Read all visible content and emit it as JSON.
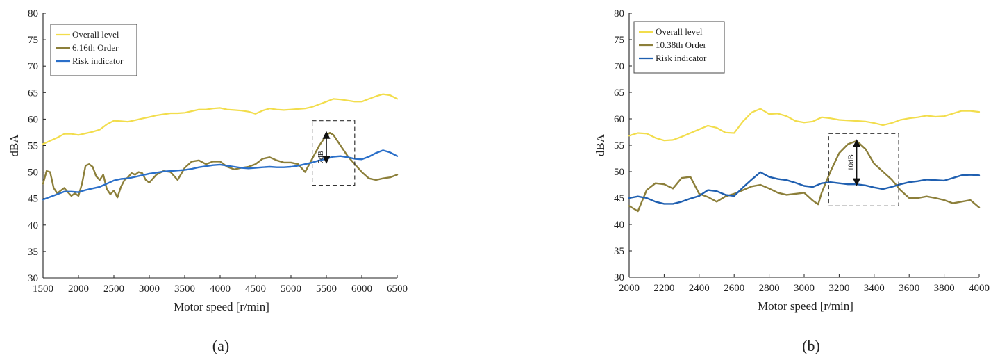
{
  "chart_data": [
    {
      "type": "line",
      "caption": "(a)",
      "xlabel": "Motor speed [r/min]",
      "ylabel": "dBA",
      "xlim": [
        1500,
        6500
      ],
      "ylim": [
        30,
        80
      ],
      "xticks": [
        1500,
        2000,
        2500,
        3000,
        3500,
        4000,
        4500,
        5000,
        5500,
        6000,
        6500
      ],
      "yticks": [
        30,
        35,
        40,
        45,
        50,
        55,
        60,
        65,
        70,
        75,
        80
      ],
      "grid": false,
      "legend_position": "top-left",
      "series": [
        {
          "name": "Overall level",
          "color": "#f2dd4c",
          "x": [
            1500,
            1600,
            1700,
            1800,
            1900,
            2000,
            2100,
            2200,
            2300,
            2400,
            2500,
            2600,
            2700,
            2800,
            2900,
            3000,
            3100,
            3200,
            3300,
            3400,
            3500,
            3600,
            3700,
            3800,
            3900,
            4000,
            4100,
            4200,
            4300,
            4400,
            4500,
            4600,
            4700,
            4800,
            4900,
            5000,
            5100,
            5200,
            5300,
            5400,
            5500,
            5600,
            5700,
            5800,
            5900,
            6000,
            6100,
            6200,
            6300,
            6400,
            6500
          ],
          "y": [
            55.3,
            55.9,
            56.5,
            57.2,
            57.2,
            57.0,
            57.3,
            57.6,
            58.0,
            59.0,
            59.7,
            59.6,
            59.5,
            59.8,
            60.1,
            60.4,
            60.7,
            60.9,
            61.1,
            61.1,
            61.2,
            61.5,
            61.8,
            61.8,
            62.0,
            62.1,
            61.8,
            61.7,
            61.6,
            61.4,
            61.0,
            61.6,
            62.0,
            61.8,
            61.7,
            61.8,
            61.9,
            62.0,
            62.3,
            62.8,
            63.3,
            63.8,
            63.7,
            63.5,
            63.3,
            63.3,
            63.8,
            64.3,
            64.7,
            64.5,
            63.8
          ]
        },
        {
          "name": "6.16th Order",
          "color": "#8c7f3a",
          "x": [
            1500,
            1550,
            1600,
            1650,
            1700,
            1750,
            1800,
            1850,
            1900,
            1950,
            2000,
            2050,
            2100,
            2150,
            2200,
            2250,
            2300,
            2350,
            2400,
            2450,
            2500,
            2550,
            2600,
            2650,
            2700,
            2750,
            2800,
            2850,
            2900,
            2950,
            3000,
            3100,
            3200,
            3300,
            3400,
            3500,
            3600,
            3700,
            3800,
            3900,
            4000,
            4100,
            4200,
            4300,
            4400,
            4500,
            4600,
            4700,
            4800,
            4900,
            5000,
            5100,
            5200,
            5300,
            5400,
            5500,
            5550,
            5600,
            5700,
            5800,
            5900,
            6000,
            6100,
            6200,
            6300,
            6400,
            6500
          ],
          "y": [
            47.8,
            50.2,
            50.0,
            47.0,
            46.0,
            46.5,
            47.0,
            46.2,
            45.5,
            46.0,
            45.5,
            47.8,
            51.2,
            51.5,
            51.0,
            49.2,
            48.5,
            49.5,
            46.8,
            45.8,
            46.5,
            45.2,
            47.2,
            48.5,
            49.0,
            49.8,
            49.5,
            50.0,
            49.8,
            48.5,
            48.0,
            49.5,
            50.2,
            50.0,
            48.5,
            50.8,
            52.0,
            52.2,
            51.5,
            52.0,
            52.0,
            51.0,
            50.5,
            50.8,
            51.0,
            51.5,
            52.5,
            52.8,
            52.2,
            51.8,
            51.8,
            51.5,
            50.0,
            52.5,
            55.0,
            57.0,
            57.4,
            57.0,
            55.0,
            53.0,
            51.5,
            50.0,
            48.8,
            48.5,
            48.8,
            49.0,
            49.5
          ]
        },
        {
          "name": "Risk indicator",
          "color": "#2a6fc9",
          "x": [
            1500,
            1600,
            1700,
            1800,
            1900,
            2000,
            2100,
            2200,
            2300,
            2400,
            2500,
            2600,
            2700,
            2800,
            2900,
            3000,
            3100,
            3200,
            3300,
            3400,
            3500,
            3600,
            3700,
            3800,
            3900,
            4000,
            4100,
            4200,
            4300,
            4400,
            4500,
            4600,
            4700,
            4800,
            4900,
            5000,
            5100,
            5200,
            5300,
            5400,
            5500,
            5600,
            5700,
            5800,
            5900,
            6000,
            6100,
            6200,
            6300,
            6400,
            6500
          ],
          "y": [
            44.8,
            45.3,
            45.8,
            46.3,
            46.3,
            46.2,
            46.6,
            46.9,
            47.2,
            47.8,
            48.4,
            48.7,
            48.8,
            49.1,
            49.4,
            49.7,
            49.9,
            50.1,
            50.2,
            50.3,
            50.4,
            50.6,
            50.9,
            51.1,
            51.3,
            51.4,
            51.2,
            51.0,
            50.8,
            50.7,
            50.8,
            50.9,
            51.0,
            50.9,
            50.9,
            51.0,
            51.2,
            51.5,
            51.8,
            52.2,
            52.5,
            52.9,
            53.0,
            52.8,
            52.5,
            52.4,
            52.9,
            53.6,
            54.1,
            53.7,
            53.0
          ]
        }
      ],
      "annotation": {
        "label": "7dB",
        "x_range": [
          5300,
          5900
        ],
        "y_range": [
          47.5,
          59.7
        ],
        "arrow_x": 5500,
        "arrow_y": [
          51.9,
          57.4
        ]
      }
    },
    {
      "type": "line",
      "caption": "(b)",
      "xlabel": "Motor speed [r/min]",
      "ylabel": "dBA",
      "xlim": [
        2000,
        4000
      ],
      "ylim": [
        30,
        80
      ],
      "xticks": [
        2000,
        2200,
        2400,
        2600,
        2800,
        3000,
        3200,
        3400,
        3600,
        3800,
        4000
      ],
      "yticks": [
        30,
        35,
        40,
        45,
        50,
        55,
        60,
        65,
        70,
        75,
        80
      ],
      "grid": false,
      "legend_position": "top-left",
      "series": [
        {
          "name": "Overall level",
          "color": "#f2dd4c",
          "x": [
            2000,
            2050,
            2100,
            2150,
            2200,
            2250,
            2300,
            2350,
            2400,
            2450,
            2500,
            2550,
            2600,
            2650,
            2700,
            2750,
            2800,
            2850,
            2900,
            2950,
            3000,
            3050,
            3100,
            3150,
            3200,
            3250,
            3300,
            3350,
            3400,
            3450,
            3500,
            3550,
            3600,
            3650,
            3700,
            3750,
            3800,
            3850,
            3900,
            3950,
            4000
          ],
          "y": [
            56.8,
            57.3,
            57.2,
            56.4,
            55.9,
            56.0,
            56.6,
            57.3,
            58.0,
            58.7,
            58.3,
            57.4,
            57.3,
            59.5,
            61.2,
            61.9,
            60.9,
            61.0,
            60.5,
            59.6,
            59.3,
            59.5,
            60.3,
            60.1,
            59.8,
            59.7,
            59.6,
            59.5,
            59.2,
            58.8,
            59.2,
            59.8,
            60.1,
            60.3,
            60.6,
            60.4,
            60.5,
            61.0,
            61.5,
            61.5,
            61.3
          ]
        },
        {
          "name": "10.38th Order",
          "color": "#8c7f3a",
          "x": [
            2000,
            2050,
            2100,
            2150,
            2200,
            2250,
            2300,
            2350,
            2400,
            2450,
            2500,
            2550,
            2600,
            2650,
            2700,
            2750,
            2800,
            2850,
            2900,
            2950,
            3000,
            3050,
            3080,
            3100,
            3150,
            3200,
            3250,
            3300,
            3350,
            3400,
            3450,
            3500,
            3550,
            3600,
            3650,
            3700,
            3750,
            3800,
            3850,
            3900,
            3950,
            4000
          ],
          "y": [
            43.5,
            42.5,
            46.5,
            47.8,
            47.6,
            46.8,
            48.8,
            49.0,
            45.8,
            45.2,
            44.3,
            45.3,
            45.8,
            46.5,
            47.2,
            47.5,
            46.8,
            46.0,
            45.6,
            45.8,
            46.0,
            44.5,
            43.8,
            46.0,
            50.0,
            53.5,
            55.2,
            55.8,
            54.3,
            51.5,
            50.0,
            48.5,
            46.5,
            45.0,
            45.0,
            45.3,
            45.0,
            44.6,
            44.0,
            44.3,
            44.6,
            43.2
          ]
        },
        {
          "name": "Risk indicator",
          "color": "#1f5fb0",
          "x": [
            2000,
            2050,
            2100,
            2150,
            2200,
            2250,
            2300,
            2350,
            2400,
            2450,
            2500,
            2550,
            2600,
            2650,
            2700,
            2750,
            2800,
            2850,
            2900,
            2950,
            3000,
            3050,
            3100,
            3150,
            3200,
            3250,
            3300,
            3350,
            3400,
            3450,
            3500,
            3550,
            3600,
            3650,
            3700,
            3750,
            3800,
            3850,
            3900,
            3950,
            4000
          ],
          "y": [
            45.0,
            45.3,
            45.0,
            44.3,
            43.9,
            43.9,
            44.3,
            44.9,
            45.4,
            46.5,
            46.3,
            45.6,
            45.4,
            47.0,
            48.5,
            49.9,
            49.0,
            48.6,
            48.4,
            47.9,
            47.3,
            47.1,
            47.8,
            48.0,
            47.8,
            47.6,
            47.6,
            47.4,
            47.0,
            46.7,
            47.1,
            47.6,
            48.0,
            48.2,
            48.5,
            48.4,
            48.3,
            48.8,
            49.3,
            49.4,
            49.3
          ]
        }
      ],
      "annotation": {
        "label": "10dB",
        "x_range": [
          3140,
          3540
        ],
        "y_range": [
          43.5,
          57.2
        ],
        "arrow_x": 3300,
        "arrow_y": [
          47.6,
          55.8
        ]
      }
    }
  ]
}
